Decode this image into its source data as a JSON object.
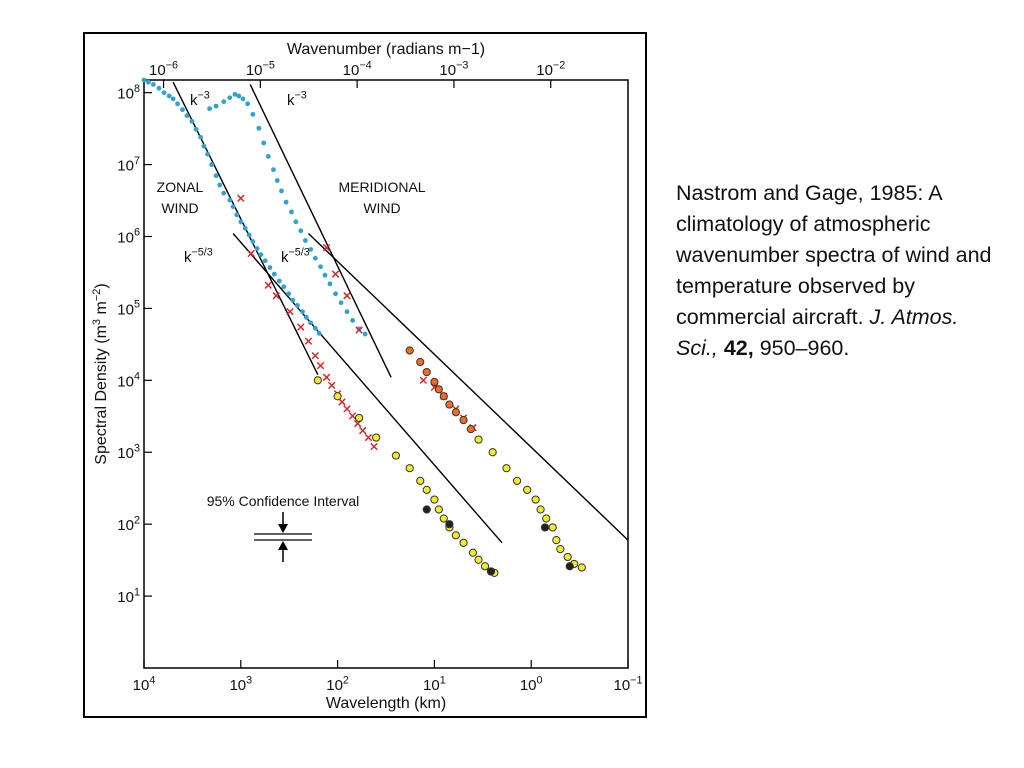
{
  "chart_data": {
    "type": "scatter",
    "axis_scale": "log-log",
    "top_axis": {
      "label": "Wavenumber (radians m−1)",
      "ticks": [
        {
          "text": "10",
          "exp": "−6",
          "value": 1e-06
        },
        {
          "text": "10",
          "exp": "−5",
          "value": 1e-05
        },
        {
          "text": "10",
          "exp": "−4",
          "value": 0.0001
        },
        {
          "text": "10",
          "exp": "−3",
          "value": 0.001
        },
        {
          "text": "10",
          "exp": "−2",
          "value": 0.01
        }
      ]
    },
    "bottom_axis": {
      "label": "Wavelength (km)",
      "range": [
        10000,
        0.1
      ],
      "ticks": [
        {
          "text": "10",
          "exp": "4",
          "value": 10000
        },
        {
          "text": "10",
          "exp": "3",
          "value": 1000
        },
        {
          "text": "10",
          "exp": "2",
          "value": 100
        },
        {
          "text": "10",
          "exp": "1",
          "value": 10
        },
        {
          "text": "10",
          "exp": "0",
          "value": 1
        },
        {
          "text": "10",
          "exp": "−1",
          "value": 0.1
        }
      ]
    },
    "y_axis": {
      "label": "Spectral Density (m3 m−2)",
      "label_parts": [
        "Spectral Density (m",
        "3",
        " m",
        "−2",
        ")"
      ],
      "range": [
        1,
        150000000
      ],
      "ticks": [
        {
          "text": "10",
          "exp": "1",
          "value": 10
        },
        {
          "text": "10",
          "exp": "2",
          "value": 100
        },
        {
          "text": "10",
          "exp": "3",
          "value": 1000
        },
        {
          "text": "10",
          "exp": "4",
          "value": 10000
        },
        {
          "text": "10",
          "exp": "5",
          "value": 100000
        },
        {
          "text": "10",
          "exp": "6",
          "value": 1000000
        },
        {
          "text": "10",
          "exp": "7",
          "value": 10000000
        },
        {
          "text": "10",
          "exp": "8",
          "value": 100000000
        }
      ]
    },
    "annotations": {
      "zonal_label": [
        "ZONAL",
        "WIND"
      ],
      "meridional_label": [
        "MERIDIONAL",
        "WIND"
      ],
      "k3_base": "k",
      "k3_exp": "−3",
      "k53_base": "k",
      "k53_exp": "−5/3",
      "confidence": "95% Confidence Interval"
    },
    "reference_lines": [
      {
        "name": "zonal k-3",
        "points": [
          [
            5000,
            140000000.0
          ],
          [
            160,
            12000.0
          ]
        ]
      },
      {
        "name": "zonal k-5/3",
        "points": [
          [
            1200,
            1100000.0
          ],
          [
            2,
            55
          ]
        ]
      },
      {
        "name": "meridional k-3",
        "points": [
          [
            800,
            130000000.0
          ],
          [
            28,
            11000.0
          ]
        ]
      },
      {
        "name": "meridional k-5/3",
        "points": [
          [
            200,
            1100000.0
          ],
          [
            0.1,
            60
          ]
        ]
      }
    ],
    "series": [
      {
        "marker": "dot",
        "color": "#2ea3cf",
        "points": [
          [
            10000,
            150000000.0
          ],
          [
            9000,
            140000000.0
          ],
          [
            8000,
            130000000.0
          ],
          [
            7000,
            115000000.0
          ],
          [
            6200,
            100000000.0
          ],
          [
            5500,
            90000000.0
          ],
          [
            5000,
            82000000.0
          ],
          [
            4500,
            70000000.0
          ],
          [
            4000,
            58000000.0
          ],
          [
            3600,
            48000000.0
          ],
          [
            3200,
            40000000.0
          ],
          [
            2900,
            31000000.0
          ],
          [
            2600,
            24000000.0
          ],
          [
            2400,
            18000000.0
          ],
          [
            2200,
            14000000.0
          ],
          [
            2000,
            10000000.0
          ],
          [
            1800,
            7000000.0
          ],
          [
            1650,
            5200000.0
          ],
          [
            1500,
            4000000.0
          ],
          [
            1300,
            3200000.0
          ],
          [
            1200,
            2600000.0
          ],
          [
            1100,
            2000000.0
          ],
          [
            1000,
            1600000.0
          ],
          [
            900,
            1300000.0
          ],
          [
            820,
            1050000.0
          ],
          [
            750,
            850000.0
          ],
          [
            680,
            680000.0
          ],
          [
            620,
            560000.0
          ],
          [
            560,
            460000.0
          ],
          [
            500,
            370000.0
          ],
          [
            450,
            300000.0
          ],
          [
            400,
            240000.0
          ],
          [
            360,
            200000.0
          ],
          [
            320,
            160000.0
          ],
          [
            290,
            130000.0
          ],
          [
            260,
            110000.0
          ],
          [
            230,
            90000.0
          ],
          [
            210,
            75000.0
          ],
          [
            190,
            63000.0
          ],
          [
            170,
            53000.0
          ],
          [
            155,
            45000.0
          ]
        ]
      },
      {
        "marker": "dot",
        "color": "#2ea3cf",
        "points": [
          [
            2100,
            60000000.0
          ],
          [
            1800,
            65000000.0
          ],
          [
            1500,
            75000000.0
          ],
          [
            1300,
            85000000.0
          ],
          [
            1150,
            95000000.0
          ],
          [
            1050,
            90000000.0
          ],
          [
            950,
            82000000.0
          ],
          [
            850,
            70000000.0
          ],
          [
            750,
            50000000.0
          ],
          [
            650,
            32000000.0
          ],
          [
            580,
            20000000.0
          ],
          [
            520,
            13000000.0
          ],
          [
            460,
            8500000.0
          ],
          [
            420,
            6000000.0
          ],
          [
            380,
            4300000.0
          ],
          [
            340,
            3000000.0
          ],
          [
            300,
            2200000.0
          ],
          [
            270,
            1600000.0
          ],
          [
            240,
            1200000.0
          ],
          [
            215,
            880000.0
          ],
          [
            190,
            660000.0
          ],
          [
            170,
            500000.0
          ],
          [
            150,
            380000.0
          ],
          [
            135,
            290000.0
          ],
          [
            120,
            220000.0
          ],
          [
            105,
            160000.0
          ],
          [
            92,
            120000.0
          ],
          [
            80,
            90000.0
          ],
          [
            70,
            68000.0
          ],
          [
            60,
            52000.0
          ],
          [
            52,
            44000.0
          ]
        ]
      },
      {
        "marker": "x",
        "color": "#d42a2a",
        "points": [
          [
            1000,
            3400000.0
          ],
          [
            780,
            580000.0
          ],
          [
            520,
            210000.0
          ],
          [
            430,
            150000.0
          ],
          [
            310,
            90000.0
          ],
          [
            240,
            55000.0
          ],
          [
            200,
            35000.0
          ],
          [
            170,
            22000.0
          ],
          [
            150,
            16000.0
          ],
          [
            130,
            11000.0
          ],
          [
            115,
            8500.0
          ],
          [
            100,
            6500.0
          ],
          [
            90,
            5000.0
          ],
          [
            80,
            4000.0
          ],
          [
            70,
            3200.0
          ],
          [
            62,
            2500.0
          ],
          [
            55,
            2000.0
          ],
          [
            48,
            1600.0
          ],
          [
            42,
            1200.0
          ]
        ]
      },
      {
        "marker": "x",
        "color": "#d42a2a",
        "points": [
          [
            130,
            700000.0
          ],
          [
            105,
            300000.0
          ],
          [
            80,
            150000.0
          ],
          [
            60,
            50000.0
          ],
          [
            13,
            10000.0
          ],
          [
            10,
            8000.0
          ],
          [
            8,
            6000.0
          ],
          [
            6,
            4000.0
          ],
          [
            5,
            3000.0
          ],
          [
            4,
            2200.0
          ]
        ]
      },
      {
        "marker": "circle",
        "color": "#f26b21",
        "points": [
          [
            18,
            26000.0
          ],
          [
            14,
            18000.0
          ],
          [
            12,
            13000.0
          ],
          [
            10,
            9500.0
          ],
          [
            9,
            7500.0
          ],
          [
            8,
            6000.0
          ],
          [
            7,
            4600.0
          ],
          [
            6,
            3600.0
          ],
          [
            5,
            2800.0
          ],
          [
            4.2,
            2100.0
          ]
        ]
      },
      {
        "marker": "circle",
        "color": "#f2ea2a",
        "points": [
          [
            160,
            10000.0
          ],
          [
            100,
            6000.0
          ],
          [
            60,
            3000.0
          ],
          [
            40,
            1600.0
          ],
          [
            25,
            900.0
          ],
          [
            18,
            600.0
          ],
          [
            14,
            400.0
          ],
          [
            12,
            300.0
          ],
          [
            10,
            220.0
          ],
          [
            9,
            160.0
          ],
          [
            8,
            120.0
          ],
          [
            7,
            90.0
          ],
          [
            6,
            70.0
          ],
          [
            5,
            55.0
          ],
          [
            4,
            40.0
          ],
          [
            3.5,
            32.0
          ],
          [
            3,
            26.0
          ],
          [
            2.6,
            22.0
          ],
          [
            2.4,
            21.0
          ],
          [
            3.5,
            1500.0
          ],
          [
            2.5,
            1000.0
          ],
          [
            1.8,
            600.0
          ],
          [
            1.4,
            400.0
          ],
          [
            1.1,
            300.0
          ],
          [
            0.9,
            220.0
          ],
          [
            0.8,
            160.0
          ],
          [
            0.7,
            120.0
          ],
          [
            0.6,
            90.0
          ],
          [
            0.55,
            60.0
          ],
          [
            0.5,
            45.0
          ],
          [
            0.42,
            35.0
          ],
          [
            0.36,
            28.0
          ],
          [
            0.3,
            25.0
          ]
        ]
      },
      {
        "marker": "circle",
        "color": "#222222",
        "points": [
          [
            12,
            160.0
          ],
          [
            7,
            100.0
          ],
          [
            2.6,
            22.0
          ],
          [
            0.72,
            90.0
          ],
          [
            0.4,
            26.0
          ]
        ]
      }
    ]
  },
  "citation": {
    "authors": "Nastrom and Gage, 1985:",
    "title": "A climatology of atmospheric wavenumber spectra of wind and temperature observed by commercial aircraft.",
    "journal": "J. Atmos. Sci.,",
    "volume": "42,",
    "pages": "950–960."
  }
}
